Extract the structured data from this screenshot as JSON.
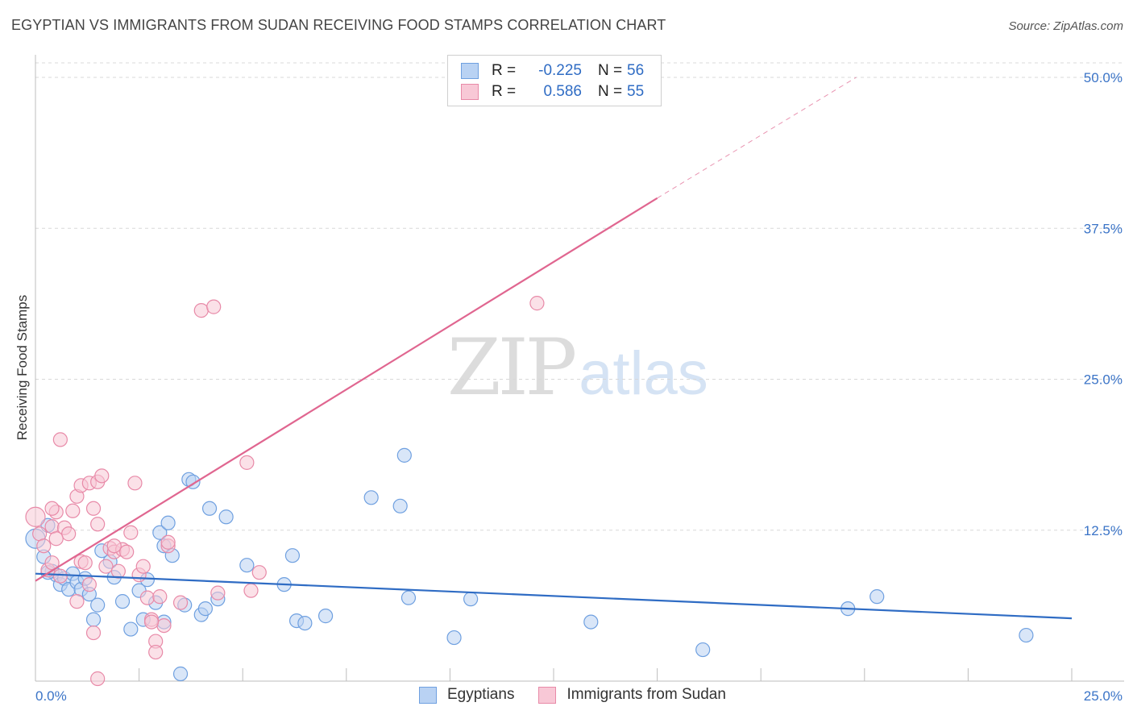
{
  "title": "EGYPTIAN VS IMMIGRANTS FROM SUDAN RECEIVING FOOD STAMPS CORRELATION CHART",
  "source": "Source: ZipAtlas.com",
  "watermark": {
    "zip": "ZIP",
    "atlas": "atlas"
  },
  "legend": {
    "rows": [
      {
        "label": "R =",
        "r": "-0.225",
        "n_label": "N =",
        "n": "56",
        "color": "#6fa0e0",
        "fill": "#b9d2f3"
      },
      {
        "label": "R =",
        "r": "0.586",
        "n_label": "N =",
        "n": "55",
        "color": "#e88aa8",
        "fill": "#f8c8d6"
      }
    ]
  },
  "bottom_legend": [
    "Egyptians",
    "Immigrants from Sudan"
  ],
  "chart_data": {
    "type": "scatter",
    "title": "EGYPTIAN VS IMMIGRANTS FROM SUDAN RECEIVING FOOD STAMPS CORRELATION CHART",
    "xlabel": "",
    "ylabel": "Receiving Food Stamps",
    "xlim": [
      0,
      25
    ],
    "ylim": [
      0,
      50
    ],
    "x_tick_labels": [
      "0.0%",
      "25.0%"
    ],
    "y_ticks": [
      12.5,
      25,
      37.5,
      50
    ],
    "y_tick_labels": [
      "12.5%",
      "25.0%",
      "37.5%",
      "50.0%"
    ],
    "series": [
      {
        "name": "Egyptians",
        "color": "#6fa0e0",
        "fill": "#b9d2f3",
        "line_color": "#2f6cc4",
        "trend": {
          "x0": 0,
          "y0": 8.9,
          "x1": 25,
          "y1": 5.2
        },
        "points": [
          [
            0.0,
            11.8
          ],
          [
            0.2,
            10.3
          ],
          [
            0.3,
            12.9
          ],
          [
            0.4,
            9.1
          ],
          [
            0.5,
            8.8
          ],
          [
            0.6,
            8.0
          ],
          [
            0.7,
            8.5
          ],
          [
            0.8,
            7.6
          ],
          [
            0.9,
            8.9
          ],
          [
            1.0,
            8.2
          ],
          [
            1.1,
            7.6
          ],
          [
            1.2,
            8.5
          ],
          [
            1.3,
            7.2
          ],
          [
            1.5,
            6.3
          ],
          [
            1.6,
            10.8
          ],
          [
            1.8,
            9.9
          ],
          [
            1.9,
            8.6
          ],
          [
            2.1,
            6.6
          ],
          [
            2.3,
            4.3
          ],
          [
            2.5,
            7.5
          ],
          [
            2.6,
            5.1
          ],
          [
            2.7,
            8.4
          ],
          [
            2.9,
            6.5
          ],
          [
            3.0,
            12.3
          ],
          [
            3.1,
            11.2
          ],
          [
            3.2,
            13.1
          ],
          [
            3.3,
            10.4
          ],
          [
            3.5,
            0.6
          ],
          [
            3.6,
            6.3
          ],
          [
            3.7,
            16.7
          ],
          [
            3.8,
            16.5
          ],
          [
            4.0,
            5.5
          ],
          [
            4.1,
            6.0
          ],
          [
            4.2,
            14.3
          ],
          [
            4.4,
            6.8
          ],
          [
            4.6,
            13.6
          ],
          [
            5.1,
            9.6
          ],
          [
            6.0,
            8.0
          ],
          [
            6.2,
            10.4
          ],
          [
            6.3,
            5.0
          ],
          [
            6.5,
            4.8
          ],
          [
            7.0,
            5.4
          ],
          [
            8.1,
            15.2
          ],
          [
            8.8,
            14.5
          ],
          [
            8.9,
            18.7
          ],
          [
            9.0,
            6.9
          ],
          [
            10.1,
            3.6
          ],
          [
            10.5,
            6.8
          ],
          [
            13.4,
            4.9
          ],
          [
            16.1,
            2.6
          ],
          [
            19.6,
            6.0
          ],
          [
            20.3,
            7.0
          ],
          [
            23.9,
            3.8
          ],
          [
            0.3,
            9.0
          ],
          [
            1.4,
            5.1
          ],
          [
            3.1,
            4.9
          ]
        ]
      },
      {
        "name": "Immigrants from Sudan",
        "color": "#e88aa8",
        "fill": "#f8c8d6",
        "line_color": "#e06690",
        "trend": {
          "x0": 0,
          "y0": 8.3,
          "x1": 15,
          "y1": 40.0
        },
        "trend_dashed": {
          "x0": 15,
          "y0": 40.0,
          "x1": 19.8,
          "y1": 50.0
        },
        "points": [
          [
            0.0,
            13.6
          ],
          [
            0.1,
            12.2
          ],
          [
            0.2,
            11.2
          ],
          [
            0.3,
            9.2
          ],
          [
            0.4,
            12.8
          ],
          [
            0.5,
            14.0
          ],
          [
            0.6,
            20.0
          ],
          [
            0.7,
            12.7
          ],
          [
            0.8,
            12.2
          ],
          [
            0.9,
            14.1
          ],
          [
            1.0,
            15.3
          ],
          [
            1.1,
            16.2
          ],
          [
            1.1,
            9.9
          ],
          [
            1.2,
            9.8
          ],
          [
            1.3,
            16.4
          ],
          [
            1.3,
            8.0
          ],
          [
            1.4,
            14.3
          ],
          [
            1.5,
            13.0
          ],
          [
            1.5,
            16.5
          ],
          [
            1.6,
            17.0
          ],
          [
            1.7,
            9.5
          ],
          [
            1.8,
            11.0
          ],
          [
            1.9,
            10.7
          ],
          [
            2.0,
            9.1
          ],
          [
            2.1,
            10.9
          ],
          [
            2.2,
            10.7
          ],
          [
            2.3,
            12.3
          ],
          [
            2.4,
            16.4
          ],
          [
            2.5,
            8.8
          ],
          [
            2.6,
            9.5
          ],
          [
            2.7,
            6.9
          ],
          [
            2.8,
            5.1
          ],
          [
            2.9,
            3.3
          ],
          [
            2.9,
            2.4
          ],
          [
            3.0,
            7.0
          ],
          [
            3.1,
            4.6
          ],
          [
            3.2,
            11.2
          ],
          [
            3.5,
            6.5
          ],
          [
            4.0,
            30.7
          ],
          [
            4.3,
            31.0
          ],
          [
            4.4,
            7.3
          ],
          [
            5.1,
            18.1
          ],
          [
            5.2,
            7.5
          ],
          [
            5.4,
            9.0
          ],
          [
            12.1,
            31.3
          ],
          [
            0.4,
            9.8
          ],
          [
            1.5,
            0.2
          ],
          [
            1.4,
            4.0
          ],
          [
            0.5,
            11.8
          ],
          [
            1.0,
            6.6
          ],
          [
            3.2,
            11.5
          ],
          [
            2.8,
            4.9
          ],
          [
            0.4,
            14.3
          ],
          [
            1.9,
            11.2
          ],
          [
            0.6,
            8.7
          ]
        ]
      }
    ]
  }
}
